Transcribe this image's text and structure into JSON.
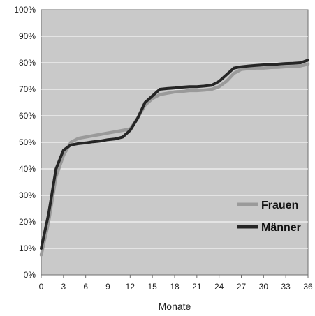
{
  "chart_data": {
    "type": "line",
    "title": "",
    "xlabel": "Monate",
    "ylabel": "",
    "xlim": [
      0,
      36
    ],
    "ylim": [
      0,
      100
    ],
    "x_ticks": [
      0,
      3,
      6,
      9,
      12,
      15,
      18,
      21,
      24,
      27,
      30,
      33,
      36
    ],
    "x_tick_labels": [
      "0",
      "3",
      "6",
      "9",
      "12",
      "15",
      "18",
      "21",
      "24",
      "27",
      "30",
      "33",
      "36"
    ],
    "y_ticks": [
      0,
      10,
      20,
      30,
      40,
      50,
      60,
      70,
      80,
      90,
      100
    ],
    "y_tick_labels": [
      "0%",
      "10%",
      "20%",
      "30%",
      "40%",
      "50%",
      "60%",
      "70%",
      "80%",
      "90%",
      "100%"
    ],
    "grid": "horizontal",
    "legend": "right",
    "x": [
      0,
      1,
      2,
      3,
      4,
      5,
      6,
      7,
      8,
      9,
      10,
      11,
      12,
      13,
      14,
      15,
      16,
      17,
      18,
      19,
      20,
      21,
      22,
      23,
      24,
      25,
      26,
      27,
      28,
      29,
      30,
      31,
      32,
      33,
      34,
      35,
      36
    ],
    "series": [
      {
        "name": "Frauen",
        "color": "#9a9a9a",
        "values": [
          7.5,
          20,
          37,
          45,
          50,
          51.5,
          52,
          52.5,
          53,
          53.5,
          54,
          54.5,
          55,
          59,
          64,
          66.5,
          68,
          68.5,
          69,
          69.2,
          69.5,
          69.5,
          69.7,
          70,
          71,
          73,
          76,
          77.5,
          77.8,
          78,
          78,
          78.2,
          78.3,
          78.5,
          78.6,
          78.8,
          79.5
        ]
      },
      {
        "name": "Männer",
        "color": "#262626",
        "values": [
          10,
          23,
          40,
          47,
          49,
          49.5,
          49.8,
          50.2,
          50.5,
          51,
          51.3,
          52,
          54.5,
          59,
          65,
          67.5,
          70,
          70.3,
          70.5,
          70.8,
          71,
          71,
          71.2,
          71.5,
          73,
          75.5,
          78,
          78.5,
          78.8,
          79,
          79.2,
          79.3,
          79.5,
          79.7,
          79.8,
          80,
          81
        ]
      }
    ]
  }
}
